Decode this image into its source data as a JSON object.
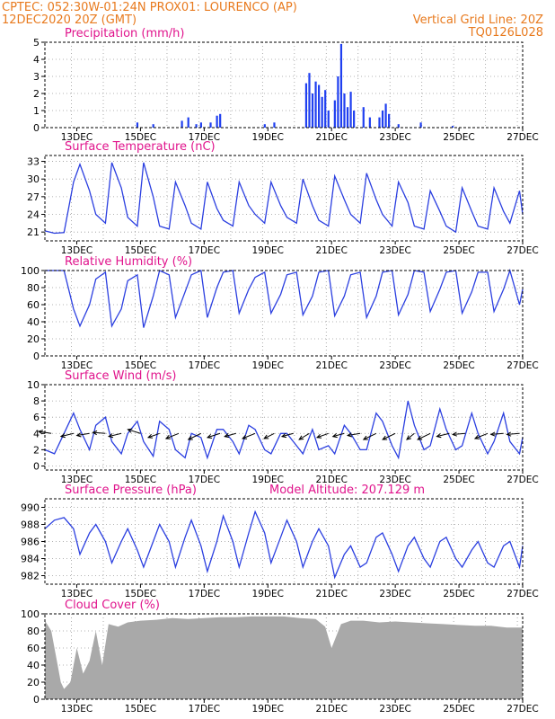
{
  "header": {
    "line1_left": "CPTEC:    052:30W-01:24N    PROX01: LOURENCO (AP)",
    "line2_left": "12DEC2020 20Z (GMT)",
    "line2_right": "Vertical Grid Line: 20Z",
    "line3_right": "TQ0126L028"
  },
  "colors": {
    "header": "#e87a1e",
    "title": "#e0148c",
    "line": "#2b3fe0",
    "bar": "#1f3ff0",
    "cloud": "#a9a9a9",
    "arrow": "#000000"
  },
  "x_ticks": [
    "13DEC",
    "15DEC",
    "17DEC",
    "19DEC",
    "21DEC",
    "23DEC",
    "25DEC",
    "27DEC"
  ],
  "chart_data": [
    {
      "type": "bar",
      "title": "Precipitation (mm/h)",
      "ylim": [
        0,
        5
      ],
      "yticks": [
        0,
        1,
        2,
        3,
        4,
        5
      ],
      "x_start_day": 12.0,
      "step_hours": 1,
      "values_hourly_sparse": [
        [
          2.9,
          0.3
        ],
        [
          3.4,
          0.2
        ],
        [
          4.3,
          0.4
        ],
        [
          4.5,
          0.6
        ],
        [
          4.75,
          0.2
        ],
        [
          4.9,
          0.3
        ],
        [
          5.2,
          0.3
        ],
        [
          5.4,
          0.7
        ],
        [
          5.5,
          0.8
        ],
        [
          6.9,
          0.2
        ],
        [
          7.2,
          0.3
        ],
        [
          8.2,
          2.6
        ],
        [
          8.3,
          3.2
        ],
        [
          8.4,
          2.0
        ],
        [
          8.5,
          2.7
        ],
        [
          8.6,
          2.5
        ],
        [
          8.7,
          1.8
        ],
        [
          8.8,
          2.2
        ],
        [
          8.9,
          1.0
        ],
        [
          9.1,
          1.6
        ],
        [
          9.2,
          3.0
        ],
        [
          9.3,
          4.9
        ],
        [
          9.4,
          2.0
        ],
        [
          9.5,
          1.2
        ],
        [
          9.6,
          2.1
        ],
        [
          9.7,
          1.0
        ],
        [
          10.0,
          1.2
        ],
        [
          10.2,
          0.6
        ],
        [
          10.5,
          0.6
        ],
        [
          10.6,
          1.0
        ],
        [
          10.7,
          1.4
        ],
        [
          10.8,
          0.8
        ],
        [
          11.1,
          0.2
        ],
        [
          11.8,
          0.3
        ],
        [
          12.8,
          0.1
        ]
      ]
    },
    {
      "type": "line",
      "title": "Surface Temperature (nC)",
      "ylim": [
        19.5,
        34
      ],
      "yticks": [
        21,
        24,
        27,
        30,
        33
      ],
      "x": [
        12.0,
        12.3,
        12.6,
        12.9,
        13.1,
        13.4,
        13.6,
        13.9,
        14.1,
        14.4,
        14.6,
        14.9,
        15.1,
        15.4,
        15.6,
        15.9,
        16.1,
        16.4,
        16.6,
        16.9,
        17.1,
        17.4,
        17.6,
        17.9,
        18.1,
        18.4,
        18.6,
        18.9,
        19.1,
        19.4,
        19.6,
        19.9,
        20.1,
        20.4,
        20.6,
        20.9,
        21.1,
        21.4,
        21.6,
        21.9,
        22.1,
        22.4,
        22.6,
        22.9,
        23.1,
        23.4,
        23.6,
        23.9,
        24.1,
        24.4,
        24.6,
        24.9,
        25.1,
        25.4,
        25.6,
        25.9,
        26.1,
        26.4,
        26.6,
        26.9,
        27.0
      ],
      "values": [
        21.2,
        20.8,
        20.9,
        29.5,
        32.5,
        28.0,
        24.0,
        22.5,
        32.8,
        28.5,
        23.5,
        22.0,
        32.8,
        27.0,
        22.0,
        21.5,
        29.5,
        25.5,
        22.5,
        21.5,
        29.5,
        25.0,
        23.0,
        22.0,
        29.5,
        25.5,
        24.0,
        22.5,
        29.5,
        25.5,
        23.5,
        22.5,
        30.0,
        25.5,
        23.0,
        22.0,
        30.5,
        26.5,
        24.0,
        22.5,
        31.0,
        26.5,
        24.0,
        22.0,
        29.5,
        26.0,
        22.0,
        21.5,
        28.0,
        24.5,
        22.0,
        21.0,
        28.5,
        24.5,
        22.0,
        21.5,
        28.5,
        24.5,
        22.5,
        28.0,
        24.0
      ]
    },
    {
      "type": "line",
      "title": "Relative Humidity (%)",
      "ylim": [
        0,
        100
      ],
      "yticks": [
        0,
        20,
        40,
        60,
        80,
        100
      ],
      "x": [
        12.0,
        12.3,
        12.6,
        12.9,
        13.1,
        13.4,
        13.6,
        13.9,
        14.1,
        14.4,
        14.6,
        14.9,
        15.1,
        15.4,
        15.6,
        15.9,
        16.1,
        16.4,
        16.6,
        16.9,
        17.1,
        17.4,
        17.6,
        17.9,
        18.1,
        18.4,
        18.6,
        18.9,
        19.1,
        19.4,
        19.6,
        19.9,
        20.1,
        20.4,
        20.6,
        20.9,
        21.1,
        21.4,
        21.6,
        21.9,
        22.1,
        22.4,
        22.6,
        22.9,
        23.1,
        23.4,
        23.6,
        23.9,
        24.1,
        24.4,
        24.6,
        24.9,
        25.1,
        25.4,
        25.6,
        25.9,
        26.1,
        26.4,
        26.6,
        26.9,
        27.0
      ],
      "values": [
        100,
        100,
        100,
        55,
        35,
        60,
        90,
        98,
        35,
        55,
        88,
        95,
        33,
        70,
        100,
        95,
        45,
        75,
        95,
        100,
        45,
        80,
        98,
        100,
        50,
        78,
        92,
        98,
        50,
        72,
        95,
        98,
        48,
        70,
        98,
        100,
        47,
        70,
        95,
        98,
        45,
        70,
        98,
        100,
        48,
        72,
        100,
        98,
        52,
        78,
        98,
        100,
        50,
        75,
        98,
        98,
        52,
        78,
        100,
        60,
        78
      ]
    },
    {
      "type": "line",
      "title": "Surface Wind (m/s)",
      "ylim": [
        -0.5,
        10
      ],
      "yticks": [
        0,
        2,
        4,
        6,
        8,
        10
      ],
      "x": [
        12.0,
        12.3,
        12.6,
        12.9,
        13.1,
        13.4,
        13.6,
        13.9,
        14.1,
        14.4,
        14.6,
        14.9,
        15.1,
        15.4,
        15.6,
        15.9,
        16.1,
        16.4,
        16.6,
        16.9,
        17.1,
        17.4,
        17.6,
        17.9,
        18.1,
        18.4,
        18.6,
        18.9,
        19.1,
        19.4,
        19.6,
        19.9,
        20.1,
        20.4,
        20.6,
        20.9,
        21.1,
        21.4,
        21.6,
        21.9,
        22.1,
        22.4,
        22.6,
        22.9,
        23.1,
        23.4,
        23.6,
        23.9,
        24.1,
        24.4,
        24.6,
        24.9,
        25.1,
        25.4,
        25.6,
        25.9,
        26.1,
        26.4,
        26.6,
        26.9,
        27.0
      ],
      "values": [
        2.0,
        1.5,
        4.0,
        6.5,
        4.5,
        2.0,
        5.0,
        6.0,
        3.0,
        1.5,
        4.0,
        5.5,
        3.0,
        1.2,
        5.5,
        4.5,
        2.0,
        1.0,
        4.0,
        3.5,
        1.0,
        4.5,
        4.5,
        3.0,
        1.5,
        5.0,
        4.5,
        2.0,
        1.5,
        4.0,
        4.0,
        2.5,
        1.5,
        4.5,
        2.0,
        2.5,
        1.5,
        5.0,
        4.0,
        2.0,
        2.0,
        6.5,
        5.5,
        2.5,
        1.0,
        8.0,
        5.0,
        2.0,
        2.5,
        7.0,
        4.5,
        2.0,
        2.5,
        6.5,
        4.0,
        1.5,
        3.0,
        6.5,
        3.0,
        1.5,
        3.5
      ],
      "arrows": [
        {
          "x": 12.2,
          "u": 1.0,
          "v": 0.2
        },
        {
          "x": 12.9,
          "u": 1.0,
          "v": -0.3
        },
        {
          "x": 13.4,
          "u": 1.0,
          "v": -0.2
        },
        {
          "x": 13.9,
          "u": 1.0,
          "v": 0.1
        },
        {
          "x": 14.4,
          "u": 1.0,
          "v": -0.3
        },
        {
          "x": 15.0,
          "u": 1.0,
          "v": 0.4
        },
        {
          "x": 15.6,
          "u": 0.9,
          "v": -0.4
        },
        {
          "x": 16.2,
          "u": 1.0,
          "v": -0.5
        },
        {
          "x": 16.9,
          "u": 1.0,
          "v": -0.6
        },
        {
          "x": 17.5,
          "u": 1.0,
          "v": -0.4
        },
        {
          "x": 18.0,
          "u": 0.9,
          "v": -0.3
        },
        {
          "x": 18.6,
          "u": 1.0,
          "v": -0.5
        },
        {
          "x": 19.2,
          "u": 0.8,
          "v": -0.5
        },
        {
          "x": 19.8,
          "u": 0.9,
          "v": -0.3
        },
        {
          "x": 20.3,
          "u": 0.8,
          "v": -0.6
        },
        {
          "x": 20.9,
          "u": 0.9,
          "v": -0.4
        },
        {
          "x": 21.4,
          "u": 0.9,
          "v": -0.3
        },
        {
          "x": 21.9,
          "u": 1.0,
          "v": -0.2
        },
        {
          "x": 22.4,
          "u": 1.0,
          "v": -0.6
        },
        {
          "x": 23.0,
          "u": 1.0,
          "v": -0.6
        },
        {
          "x": 23.6,
          "u": 0.6,
          "v": -0.6
        },
        {
          "x": 24.1,
          "u": 1.0,
          "v": -0.6
        },
        {
          "x": 24.7,
          "u": 1.0,
          "v": -0.3
        },
        {
          "x": 25.2,
          "u": 1.0,
          "v": -0.1
        },
        {
          "x": 25.9,
          "u": 1.0,
          "v": -0.5
        },
        {
          "x": 26.4,
          "u": 1.0,
          "v": -0.1
        },
        {
          "x": 26.9,
          "u": 1.0,
          "v": -0.1
        }
      ]
    },
    {
      "type": "line",
      "title": "Surface Pressure (hPa)",
      "subtitle": "Model Altitude: 207.129 m",
      "ylim": [
        981,
        991
      ],
      "yticks": [
        982,
        984,
        986,
        988,
        990
      ],
      "x": [
        12.0,
        12.3,
        12.6,
        12.9,
        13.1,
        13.4,
        13.6,
        13.9,
        14.1,
        14.4,
        14.6,
        14.9,
        15.1,
        15.4,
        15.6,
        15.9,
        16.1,
        16.4,
        16.6,
        16.9,
        17.1,
        17.4,
        17.6,
        17.9,
        18.1,
        18.4,
        18.6,
        18.9,
        19.1,
        19.4,
        19.6,
        19.9,
        20.1,
        20.4,
        20.6,
        20.9,
        21.1,
        21.4,
        21.6,
        21.9,
        22.1,
        22.4,
        22.6,
        22.9,
        23.1,
        23.4,
        23.6,
        23.9,
        24.1,
        24.4,
        24.6,
        24.9,
        25.1,
        25.4,
        25.6,
        25.9,
        26.1,
        26.4,
        26.6,
        26.9,
        27.0
      ],
      "values": [
        987.5,
        988.5,
        988.8,
        987.5,
        984.5,
        987.0,
        988.0,
        986.0,
        983.5,
        986.0,
        987.5,
        985.0,
        983.0,
        986.0,
        988.0,
        986.0,
        983.0,
        986.5,
        988.5,
        985.5,
        982.5,
        986.0,
        989.0,
        986.0,
        983.0,
        987.0,
        989.5,
        987.0,
        983.5,
        986.5,
        988.5,
        986.0,
        983.0,
        986.0,
        987.5,
        985.5,
        981.8,
        984.5,
        985.5,
        983.0,
        983.5,
        986.5,
        987.0,
        984.5,
        982.5,
        985.5,
        986.5,
        984.0,
        983.0,
        986.0,
        986.5,
        984.0,
        983.0,
        985.0,
        986.0,
        983.5,
        983.0,
        985.5,
        986.0,
        983.0,
        985.5
      ]
    },
    {
      "type": "area",
      "title": "Cloud Cover (%)",
      "ylim": [
        0,
        100
      ],
      "yticks": [
        0,
        20,
        40,
        60,
        80,
        100
      ],
      "x": [
        12.0,
        12.2,
        12.4,
        12.5,
        12.6,
        12.8,
        13.0,
        13.2,
        13.4,
        13.6,
        13.8,
        14.0,
        14.3,
        14.6,
        15.0,
        15.5,
        16.0,
        16.5,
        17.0,
        17.5,
        18.0,
        18.5,
        19.0,
        19.5,
        20.0,
        20.5,
        20.8,
        21.0,
        21.3,
        21.6,
        22.0,
        22.5,
        23.0,
        23.5,
        24.0,
        24.5,
        25.0,
        25.5,
        26.0,
        26.5,
        27.0
      ],
      "values": [
        92,
        80,
        40,
        20,
        12,
        20,
        60,
        30,
        45,
        80,
        40,
        88,
        85,
        90,
        92,
        93,
        95,
        94,
        95,
        96,
        96,
        97,
        97,
        97,
        95,
        94,
        85,
        60,
        88,
        92,
        92,
        90,
        91,
        90,
        89,
        88,
        87,
        86,
        86,
        84,
        84
      ]
    }
  ]
}
